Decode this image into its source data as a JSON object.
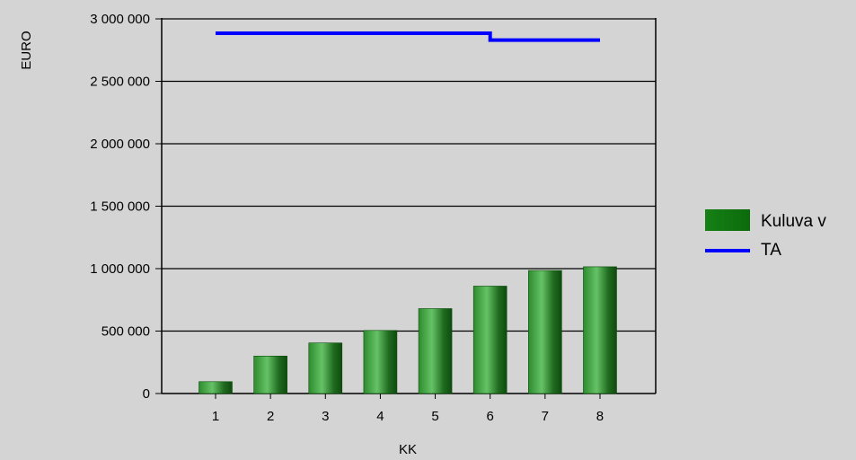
{
  "chart_data": {
    "type": "bar",
    "title": "",
    "xlabel": "KK",
    "ylabel": "EURO",
    "categories": [
      "1",
      "2",
      "3",
      "4",
      "5",
      "6",
      "7",
      "8"
    ],
    "ylim": [
      0,
      3000000
    ],
    "yticks": [
      0,
      500000,
      1000000,
      1500000,
      2000000,
      2500000,
      3000000
    ],
    "ytick_labels": [
      "0",
      "500 000",
      "1 000 000",
      "1 500 000",
      "2 000 000",
      "2 500 000",
      "3 000 000"
    ],
    "grid": true,
    "legend_position": "right",
    "series": [
      {
        "name": "Kuluva v",
        "type": "bar",
        "color": "#1f8a1f",
        "values": [
          95000,
          300000,
          405000,
          505000,
          680000,
          860000,
          985000,
          1015000
        ]
      },
      {
        "name": "TA",
        "type": "step-line",
        "color": "#0000ff",
        "values": [
          2885000,
          2885000,
          2885000,
          2885000,
          2885000,
          2830000,
          2830000,
          2830000
        ],
        "step_after_category": "6"
      }
    ]
  }
}
